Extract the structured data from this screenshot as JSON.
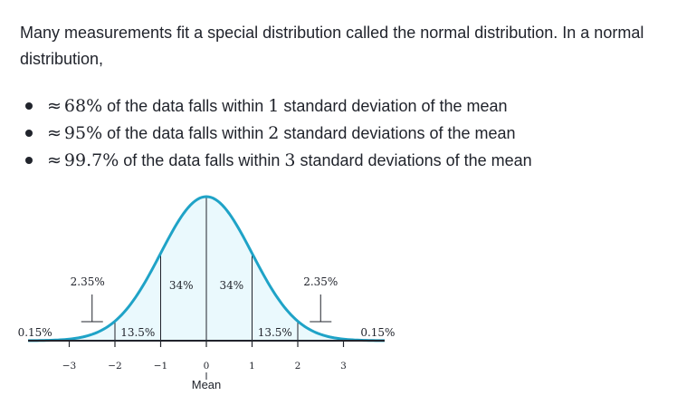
{
  "intro": "Many measurements fit a special distribution called the normal distribution. In a normal distribution,",
  "bullets": [
    {
      "approx": "≈",
      "value": "68%",
      "mid": " of the data falls within ",
      "num": "1",
      "rest": " standard deviation of the mean"
    },
    {
      "approx": "≈",
      "value": "95%",
      "mid": " of the data falls within ",
      "num": "2",
      "rest": " standard deviations of the mean"
    },
    {
      "approx": "≈",
      "value": "99.7%",
      "mid": " of the data falls within ",
      "num": "3",
      "rest": " standard deviations of the mean"
    }
  ],
  "colors": {
    "curve": "#1fa3c7",
    "fill": "#eaf9fd",
    "text": "#21242c"
  },
  "chart_data": {
    "type": "area",
    "title": "",
    "xlabel": "Mean",
    "ylabel": "",
    "curve": "standard normal density",
    "xlim": [
      -3.9,
      3.9
    ],
    "ticks": [
      -3,
      -2,
      -1,
      0,
      1,
      2,
      3
    ],
    "tick_labels": [
      "−3",
      "−2",
      "−1",
      "0",
      "1",
      "2",
      "3"
    ],
    "region_labels": [
      {
        "range": [
          -4,
          -3
        ],
        "label": "0.15%"
      },
      {
        "range": [
          -3,
          -2
        ],
        "label": "2.35%"
      },
      {
        "range": [
          -2,
          -1
        ],
        "label": "13.5%"
      },
      {
        "range": [
          -1,
          0
        ],
        "label": "34%"
      },
      {
        "range": [
          0,
          1
        ],
        "label": "34%"
      },
      {
        "range": [
          1,
          2
        ],
        "label": "13.5%"
      },
      {
        "range": [
          2,
          3
        ],
        "label": "2.35%"
      },
      {
        "range": [
          3,
          4
        ],
        "label": "0.15%"
      }
    ]
  }
}
